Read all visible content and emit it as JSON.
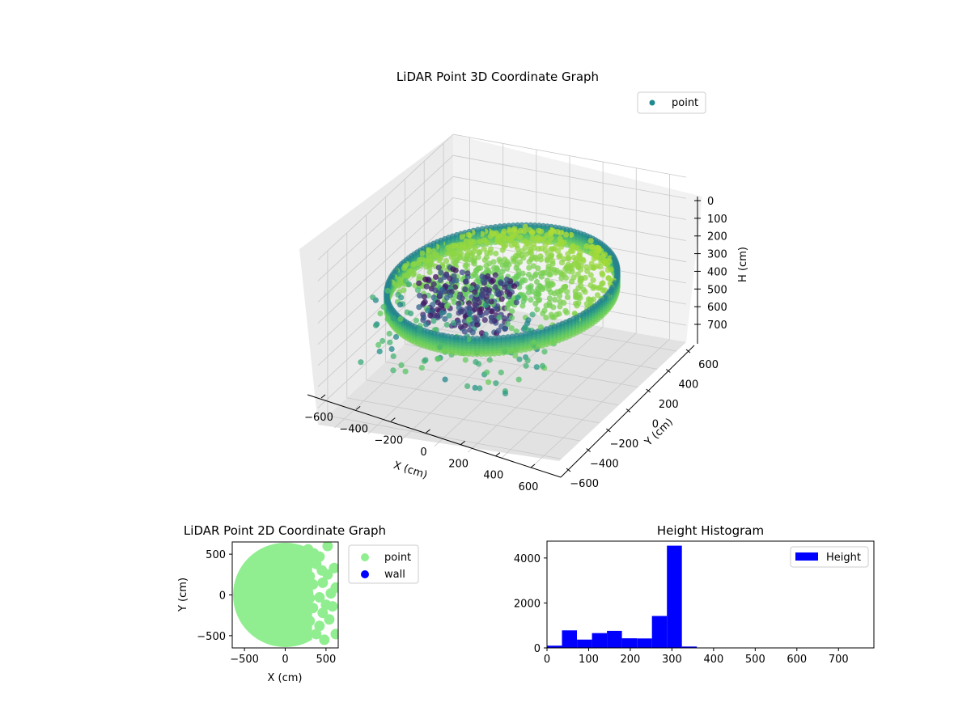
{
  "colors": {
    "legend_point_3d": "#21888d",
    "point_2d": "#90ee90",
    "wall_2d": "#0000ff",
    "hist_bar": "#0000ff",
    "pane_left": "#ebebeb",
    "pane_right": "#f2f2f2",
    "pane_floor": "#e2e2e2",
    "grid": "#c8c8c8",
    "colormap": [
      "#440154",
      "#3b528b",
      "#21918c",
      "#5ec962",
      "#a0da39",
      "#fde725"
    ]
  },
  "chart_data": [
    {
      "type": "scatter",
      "projection": "3d",
      "title": "LiDAR Point 3D Coordinate Graph",
      "xlabel": "X (cm)",
      "ylabel": "Y (cm)",
      "zlabel": "H (cm)",
      "xlim": [
        -700,
        700
      ],
      "ylim": [
        -700,
        700
      ],
      "zlim": [
        780,
        0
      ],
      "xticks": [
        "−600",
        "−400",
        "−200",
        "0",
        "200",
        "400",
        "600"
      ],
      "yticks": [
        "−600",
        "−400",
        "−200",
        "0",
        "200",
        "400",
        "600"
      ],
      "zticks": [
        "0",
        "100",
        "200",
        "300",
        "400",
        "500",
        "600",
        "700"
      ],
      "legend": {
        "labels": [
          "point"
        ],
        "placement": "top-right"
      },
      "grid": true,
      "colormap": "viridis",
      "description_series": {
        "floor_ring": {
          "radius_cm": 600,
          "height_range_cm": [
            300,
            320
          ]
        },
        "wall_ring_height_range_cm": [
          180,
          380
        ],
        "scattered_cluster_quadrant": "x>0"
      }
    },
    {
      "type": "scatter",
      "title": "LiDAR Point 2D Coordinate Graph",
      "xlabel": "X (cm)",
      "ylabel": "Y (cm)",
      "xlim": [
        -650,
        650
      ],
      "ylim": [
        -650,
        650
      ],
      "xticks": [
        "−500",
        "0",
        "500"
      ],
      "yticks": [
        "−500",
        "0",
        "500"
      ],
      "series": [
        {
          "name": "point",
          "region": "disk",
          "radius": 640,
          "points_right_edge": [
            [
              280,
              560
            ],
            [
              350,
              510
            ],
            [
              420,
              470
            ],
            [
              520,
              600
            ],
            [
              380,
              380
            ],
            [
              450,
              300
            ],
            [
              300,
              230
            ],
            [
              520,
              250
            ],
            [
              620,
              90
            ],
            [
              340,
              130
            ],
            [
              460,
              150
            ],
            [
              560,
              20
            ],
            [
              300,
              -40
            ],
            [
              420,
              -30
            ],
            [
              500,
              -120
            ],
            [
              340,
              -160
            ],
            [
              460,
              -220
            ],
            [
              300,
              -320
            ],
            [
              420,
              -380
            ],
            [
              540,
              -300
            ],
            [
              620,
              -480
            ],
            [
              380,
              -480
            ],
            [
              480,
              -550
            ],
            [
              300,
              420
            ],
            [
              260,
              60
            ],
            [
              600,
              330
            ],
            [
              580,
              -140
            ]
          ]
        },
        {
          "name": "wall",
          "points": []
        }
      ],
      "legend": {
        "labels": [
          "point",
          "wall"
        ],
        "placement": "outside-right"
      }
    },
    {
      "type": "bar",
      "title": "Height Histogram",
      "xlim": [
        0,
        785
      ],
      "ylim": [
        0,
        4750
      ],
      "xticks": [
        "0",
        "100",
        "200",
        "300",
        "400",
        "500",
        "600",
        "700"
      ],
      "yticks": [
        "0",
        "2000",
        "4000"
      ],
      "bin_width": 36,
      "series": [
        {
          "name": "Height",
          "bin_starts": [
            0,
            36,
            72,
            108,
            144,
            180,
            216,
            252,
            288,
            324,
            360,
            396,
            432,
            468,
            504,
            540,
            576,
            612,
            648,
            684,
            720
          ],
          "values": [
            100,
            780,
            370,
            660,
            760,
            430,
            420,
            1420,
            4550,
            60,
            0,
            0,
            0,
            0,
            0,
            0,
            0,
            0,
            0,
            0,
            0
          ]
        }
      ],
      "legend": {
        "labels": [
          "Height"
        ],
        "placement": "top-right"
      }
    }
  ]
}
